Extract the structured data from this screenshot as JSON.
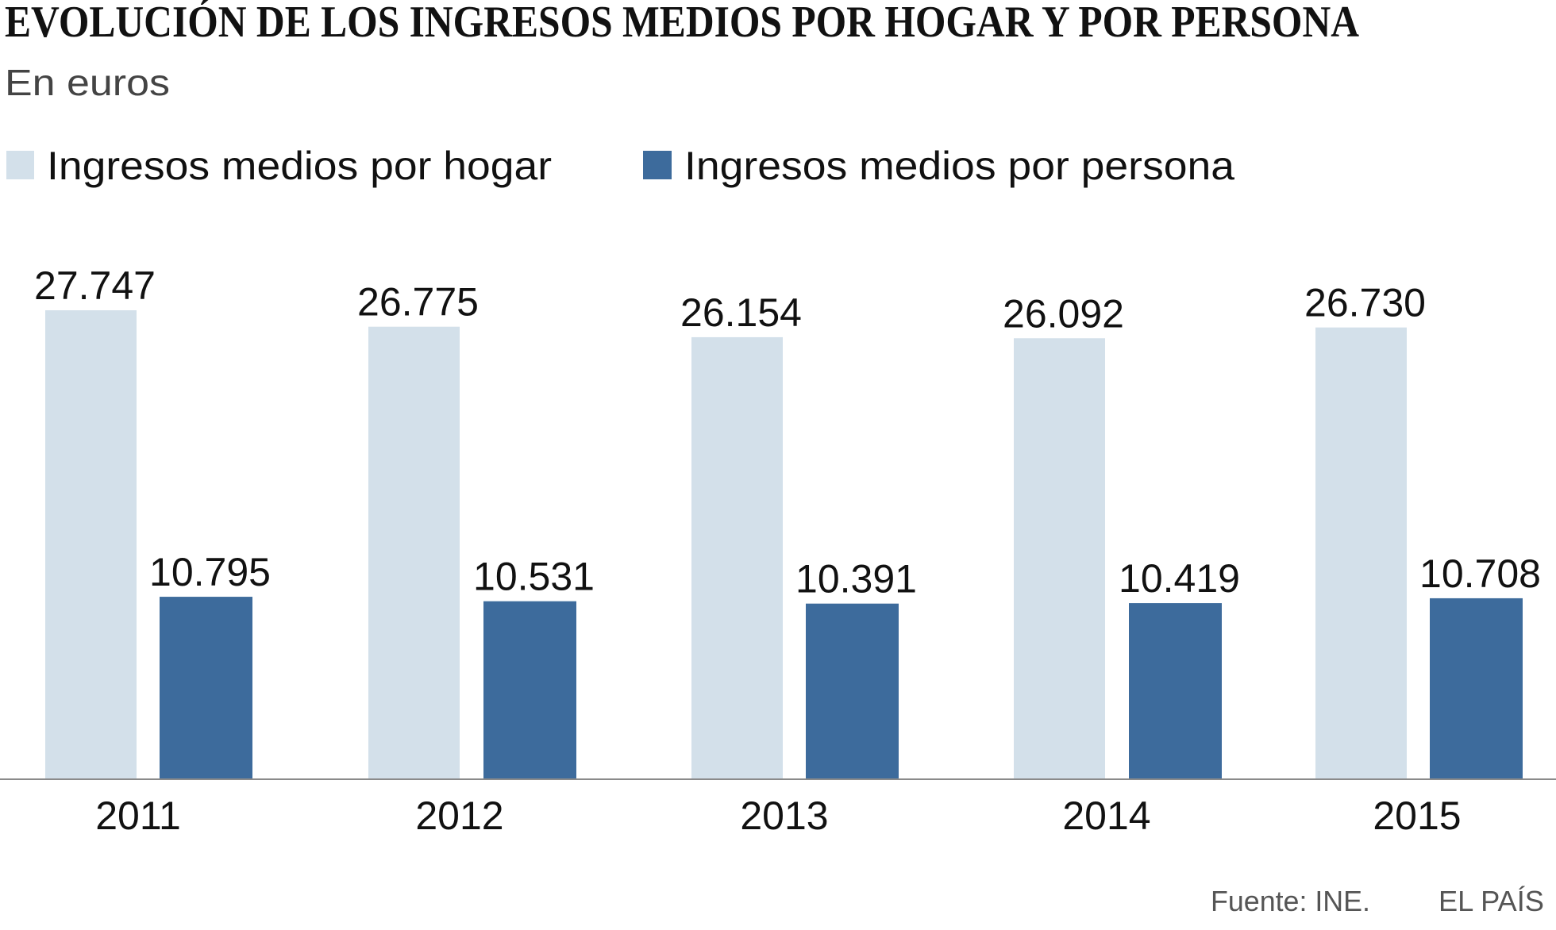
{
  "chart_data": {
    "type": "bar",
    "title": "EVOLUCIÓN DE LOS INGRESOS MEDIOS POR HOGAR Y POR PERSONA",
    "subtitle": "En euros",
    "categories": [
      "2011",
      "2012",
      "2013",
      "2014",
      "2015"
    ],
    "series": [
      {
        "name": "Ingresos medios por hogar",
        "values": [
          27747,
          26775,
          26154,
          26092,
          26730
        ],
        "labels": [
          "27.747",
          "26.775",
          "26.154",
          "26.092",
          "26.730"
        ],
        "color": "#d3e0ea"
      },
      {
        "name": "Ingresos medios por persona",
        "values": [
          10795,
          10531,
          10391,
          10419,
          10708
        ],
        "labels": [
          "10.795",
          "10.531",
          "10.391",
          "10.419",
          "10.708"
        ],
        "color": "#3d6b9c"
      }
    ],
    "ylim": [
      0,
      27747
    ],
    "grid": false,
    "legend": "top-left",
    "source": "Fuente: INE.",
    "brand": "EL PAÍS"
  }
}
